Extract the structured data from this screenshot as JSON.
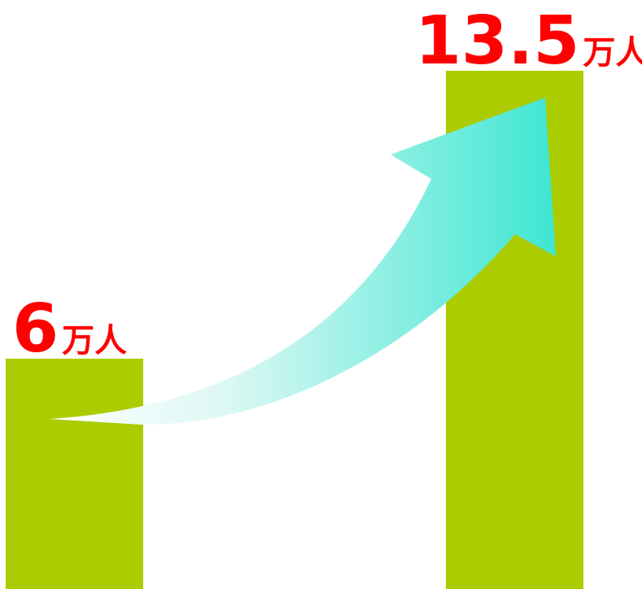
{
  "chart_data": {
    "type": "bar",
    "categories": [
      null,
      null
    ],
    "values": [
      6,
      13.5
    ],
    "value_labels": [
      "6万人",
      "13.5万人"
    ],
    "color": "#aacc00"
  }
}
